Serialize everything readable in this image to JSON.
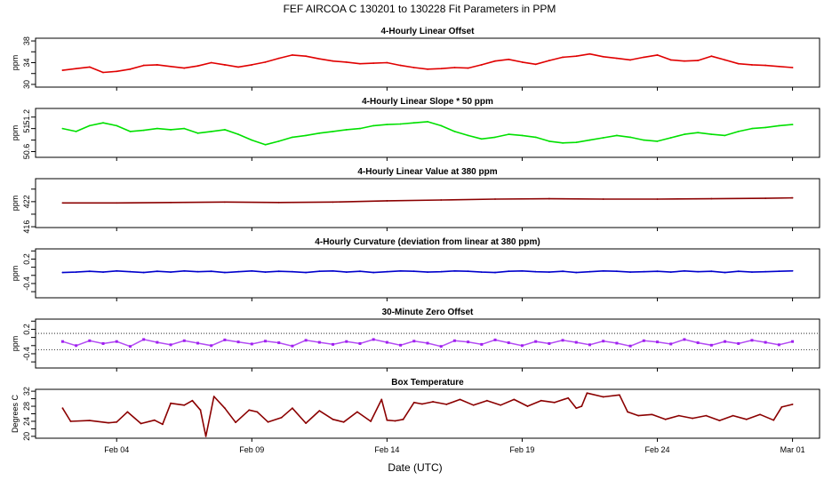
{
  "figure": {
    "title": "FEF   AIRCOA C   130201 to 130228   Fit Parameters in PPM",
    "xlabel": "Date (UTC)"
  },
  "chart_data": [
    {
      "type": "line",
      "title": "4-Hourly Linear Offset",
      "ylabel": "ppm",
      "ylim": [
        29.5,
        38.5
      ],
      "yticks": [
        30,
        32,
        34,
        36,
        38
      ],
      "ytick_labels": [
        "30",
        "",
        "34",
        "",
        "38"
      ],
      "xlim": [
        0,
        29
      ],
      "xticks": [
        3,
        8,
        13,
        18,
        23,
        28
      ],
      "xtick_labels": [
        "Feb 04",
        "Feb 09",
        "Feb 14",
        "Feb 19",
        "Feb 24",
        "Mar 01"
      ],
      "color": "#e00000",
      "x": [
        1.0,
        1.5,
        2.0,
        2.5,
        3.0,
        3.5,
        4.0,
        4.5,
        5.0,
        5.5,
        6.0,
        6.5,
        7.0,
        7.5,
        8.0,
        8.5,
        9.0,
        9.5,
        10.0,
        10.5,
        11.0,
        11.5,
        12.0,
        12.5,
        13.0,
        13.5,
        14.0,
        14.5,
        15.0,
        15.5,
        16.0,
        16.5,
        17.0,
        17.5,
        18.0,
        18.5,
        19.0,
        19.5,
        20.0,
        20.5,
        21.0,
        21.5,
        22.0,
        22.5,
        23.0,
        23.5,
        24.0,
        24.5,
        25.0,
        25.5,
        26.0,
        26.5,
        27.0,
        27.5,
        28.0
      ],
      "values": [
        32.6,
        32.9,
        33.2,
        32.2,
        32.4,
        32.8,
        33.5,
        33.6,
        33.3,
        33.0,
        33.4,
        34.0,
        33.6,
        33.2,
        33.6,
        34.1,
        34.8,
        35.4,
        35.2,
        34.7,
        34.3,
        34.1,
        33.8,
        33.9,
        34.0,
        33.5,
        33.1,
        32.8,
        32.9,
        33.1,
        33.0,
        33.6,
        34.3,
        34.6,
        34.1,
        33.7,
        34.4,
        35.0,
        35.2,
        35.6,
        35.1,
        34.8,
        34.5,
        35.0,
        35.4,
        34.5,
        34.3,
        34.4,
        35.2,
        34.5,
        33.8,
        33.6,
        33.5,
        33.3,
        33.1
      ]
    },
    {
      "type": "line",
      "title": "4-Hourly Linear Slope * 50 ppm",
      "ylabel": "ppm",
      "ylim": [
        50.5,
        51.35
      ],
      "yticks": [
        50.6,
        50.8,
        51.0,
        51.2
      ],
      "ytick_labels": [
        "50.6",
        "",
        "51",
        "51.2"
      ],
      "xlim": [
        0,
        29
      ],
      "xticks": [
        3,
        8,
        13,
        18,
        23,
        28
      ],
      "xtick_labels": [
        "Feb 04",
        "Feb 09",
        "Feb 14",
        "Feb 19",
        "Feb 24",
        "Mar 01"
      ],
      "color": "#00e000",
      "x": [
        1.0,
        1.5,
        2.0,
        2.5,
        3.0,
        3.5,
        4.0,
        4.5,
        5.0,
        5.5,
        6.0,
        6.5,
        7.0,
        7.5,
        8.0,
        8.5,
        9.0,
        9.5,
        10.0,
        10.5,
        11.0,
        11.5,
        12.0,
        12.5,
        13.0,
        13.5,
        14.0,
        14.5,
        15.0,
        15.5,
        16.0,
        16.5,
        17.0,
        17.5,
        18.0,
        18.5,
        19.0,
        19.5,
        20.0,
        20.5,
        21.0,
        21.5,
        22.0,
        22.5,
        23.0,
        23.5,
        24.0,
        24.5,
        25.0,
        25.5,
        26.0,
        26.5,
        27.0,
        27.5,
        28.0
      ],
      "values": [
        51.0,
        50.95,
        51.05,
        51.1,
        51.05,
        50.95,
        50.97,
        51.0,
        50.98,
        51.0,
        50.92,
        50.95,
        50.98,
        50.9,
        50.8,
        50.72,
        50.78,
        50.85,
        50.88,
        50.92,
        50.95,
        50.98,
        51.0,
        51.05,
        51.07,
        51.08,
        51.1,
        51.12,
        51.05,
        50.95,
        50.88,
        50.82,
        50.85,
        50.9,
        50.88,
        50.85,
        50.78,
        50.75,
        50.76,
        50.8,
        50.84,
        50.88,
        50.85,
        50.8,
        50.78,
        50.84,
        50.9,
        50.93,
        50.9,
        50.88,
        50.95,
        51.0,
        51.02,
        51.05,
        51.07
      ]
    },
    {
      "type": "line",
      "title": "4-Hourly Linear Value at 380 ppm",
      "ylabel": "ppm",
      "ylim": [
        415.8,
        427.5
      ],
      "yticks": [
        416,
        419,
        422,
        425
      ],
      "ytick_labels": [
        "416",
        "",
        "422",
        ""
      ],
      "xlim": [
        0,
        29
      ],
      "xticks": [
        3,
        8,
        13,
        18,
        23,
        28
      ],
      "xtick_labels": [
        "Feb 04",
        "Feb 09",
        "Feb 14",
        "Feb 19",
        "Feb 24",
        "Mar 01"
      ],
      "color": "#8b0000",
      "x": [
        1.0,
        3.0,
        5.0,
        7.0,
        9.0,
        11.0,
        13.0,
        15.0,
        17.0,
        19.0,
        21.0,
        23.0,
        25.0,
        27.0,
        28.0
      ],
      "values": [
        421.7,
        421.7,
        421.8,
        421.9,
        421.8,
        421.9,
        422.2,
        422.4,
        422.6,
        422.7,
        422.6,
        422.6,
        422.7,
        422.8,
        422.9
      ]
    },
    {
      "type": "line",
      "title": "4-Hourly Curvature (deviation from linear at 380 ppm)",
      "ylabel": "ppm",
      "ylim": [
        -0.75,
        0.45
      ],
      "yticks": [
        -0.6,
        -0.4,
        -0.2,
        0.0,
        0.2,
        0.4
      ],
      "ytick_labels": [
        "",
        "-0.4",
        "",
        "",
        "0.2",
        ""
      ],
      "xlim": [
        0,
        29
      ],
      "xticks": [
        3,
        8,
        13,
        18,
        23,
        28
      ],
      "xtick_labels": [
        "Feb 04",
        "Feb 09",
        "Feb 14",
        "Feb 19",
        "Feb 24",
        "Mar 01"
      ],
      "color": "#0000cc",
      "x": [
        1.0,
        1.5,
        2.0,
        2.5,
        3.0,
        3.5,
        4.0,
        4.5,
        5.0,
        5.5,
        6.0,
        6.5,
        7.0,
        7.5,
        8.0,
        8.5,
        9.0,
        9.5,
        10.0,
        10.5,
        11.0,
        11.5,
        12.0,
        12.5,
        13.0,
        13.5,
        14.0,
        14.5,
        15.0,
        15.5,
        16.0,
        16.5,
        17.0,
        17.5,
        18.0,
        18.5,
        19.0,
        19.5,
        20.0,
        20.5,
        21.0,
        21.5,
        22.0,
        22.5,
        23.0,
        23.5,
        24.0,
        24.5,
        25.0,
        25.5,
        26.0,
        26.5,
        27.0,
        27.5,
        28.0
      ],
      "values": [
        -0.13,
        -0.12,
        -0.1,
        -0.12,
        -0.09,
        -0.11,
        -0.13,
        -0.1,
        -0.12,
        -0.09,
        -0.11,
        -0.1,
        -0.13,
        -0.11,
        -0.09,
        -0.12,
        -0.1,
        -0.11,
        -0.13,
        -0.1,
        -0.09,
        -0.12,
        -0.1,
        -0.13,
        -0.11,
        -0.09,
        -0.1,
        -0.12,
        -0.11,
        -0.09,
        -0.1,
        -0.12,
        -0.13,
        -0.1,
        -0.09,
        -0.11,
        -0.12,
        -0.1,
        -0.13,
        -0.11,
        -0.09,
        -0.1,
        -0.12,
        -0.11,
        -0.1,
        -0.12,
        -0.09,
        -0.11,
        -0.1,
        -0.13,
        -0.1,
        -0.12,
        -0.11,
        -0.1,
        -0.09
      ]
    },
    {
      "type": "scatter",
      "title": "30-Minute Zero Offset",
      "ylabel": "ppm",
      "ylim": [
        -0.75,
        0.45
      ],
      "yticks": [
        -0.6,
        -0.4,
        -0.2,
        0.0,
        0.2,
        0.4
      ],
      "ytick_labels": [
        "",
        "-0.4",
        "",
        "",
        "0.2",
        ""
      ],
      "reference_lines": [
        0.1,
        -0.3
      ],
      "xlim": [
        0,
        29
      ],
      "xticks": [
        3,
        8,
        13,
        18,
        23,
        28
      ],
      "xtick_labels": [
        "Feb 04",
        "Feb 09",
        "Feb 14",
        "Feb 19",
        "Feb 24",
        "Mar 01"
      ],
      "color": "#a020f0",
      "x": [
        1.0,
        1.5,
        2.0,
        2.5,
        3.0,
        3.5,
        4.0,
        4.5,
        5.0,
        5.5,
        6.0,
        6.5,
        7.0,
        7.5,
        8.0,
        8.5,
        9.0,
        9.5,
        10.0,
        10.5,
        11.0,
        11.5,
        12.0,
        12.5,
        13.0,
        13.5,
        14.0,
        14.5,
        15.0,
        15.5,
        16.0,
        16.5,
        17.0,
        17.5,
        18.0,
        18.5,
        19.0,
        19.5,
        20.0,
        20.5,
        21.0,
        21.5,
        22.0,
        22.5,
        23.0,
        23.5,
        24.0,
        24.5,
        25.0,
        25.5,
        26.0,
        26.5,
        27.0,
        27.5,
        28.0
      ],
      "values": [
        -0.1,
        -0.2,
        -0.08,
        -0.15,
        -0.1,
        -0.22,
        -0.05,
        -0.12,
        -0.18,
        -0.08,
        -0.14,
        -0.2,
        -0.06,
        -0.11,
        -0.16,
        -0.09,
        -0.13,
        -0.21,
        -0.07,
        -0.12,
        -0.17,
        -0.1,
        -0.15,
        -0.05,
        -0.12,
        -0.19,
        -0.09,
        -0.14,
        -0.22,
        -0.08,
        -0.11,
        -0.17,
        -0.06,
        -0.13,
        -0.2,
        -0.1,
        -0.15,
        -0.07,
        -0.12,
        -0.18,
        -0.09,
        -0.14,
        -0.21,
        -0.08,
        -0.11,
        -0.16,
        -0.05,
        -0.13,
        -0.19,
        -0.1,
        -0.15,
        -0.07,
        -0.12,
        -0.18,
        -0.1
      ]
    },
    {
      "type": "line",
      "title": "Box Temperature",
      "ylabel": "Degrees C",
      "ylim": [
        19.5,
        32.5
      ],
      "yticks": [
        20,
        22,
        24,
        26,
        28,
        30,
        32
      ],
      "ytick_labels": [
        "20",
        "",
        "24",
        "",
        "28",
        "",
        "32"
      ],
      "xlim": [
        0,
        29
      ],
      "xticks": [
        3,
        8,
        13,
        18,
        23,
        28
      ],
      "xtick_labels": [
        "Feb 04",
        "Feb 09",
        "Feb 14",
        "Feb 19",
        "Feb 24",
        "Mar 01"
      ],
      "color": "#8b0000",
      "x": [
        1.0,
        1.3,
        2.0,
        2.7,
        3.0,
        3.4,
        3.9,
        4.4,
        4.7,
        5.0,
        5.5,
        5.8,
        6.1,
        6.3,
        6.6,
        7.0,
        7.4,
        7.9,
        8.2,
        8.6,
        9.1,
        9.5,
        10.0,
        10.5,
        11.0,
        11.4,
        11.9,
        12.4,
        12.8,
        13.0,
        13.3,
        13.6,
        14.0,
        14.3,
        14.7,
        15.2,
        15.7,
        16.2,
        16.7,
        17.2,
        17.7,
        18.2,
        18.7,
        19.2,
        19.7,
        20.0,
        20.2,
        20.4,
        21.0,
        21.6,
        21.9,
        22.3,
        22.8,
        23.3,
        23.8,
        24.3,
        24.8,
        25.3,
        25.8,
        26.3,
        26.8,
        27.3,
        27.6,
        28.0
      ],
      "values": [
        27.5,
        24.0,
        24.2,
        23.6,
        23.8,
        26.5,
        23.4,
        24.3,
        23.2,
        28.8,
        28.3,
        29.5,
        27.0,
        20.0,
        30.6,
        27.5,
        23.7,
        27.0,
        26.5,
        23.8,
        25.0,
        27.5,
        23.5,
        26.8,
        24.5,
        23.8,
        26.5,
        24.0,
        29.8,
        24.3,
        24.1,
        24.5,
        29.0,
        28.6,
        29.2,
        28.5,
        29.8,
        28.3,
        29.5,
        28.3,
        29.8,
        28.0,
        29.5,
        29.0,
        30.2,
        27.5,
        28.0,
        31.5,
        30.5,
        31.0,
        26.5,
        25.5,
        25.8,
        24.5,
        25.5,
        24.8,
        25.5,
        24.2,
        25.5,
        24.5,
        25.8,
        24.3,
        27.8,
        28.5
      ]
    }
  ]
}
